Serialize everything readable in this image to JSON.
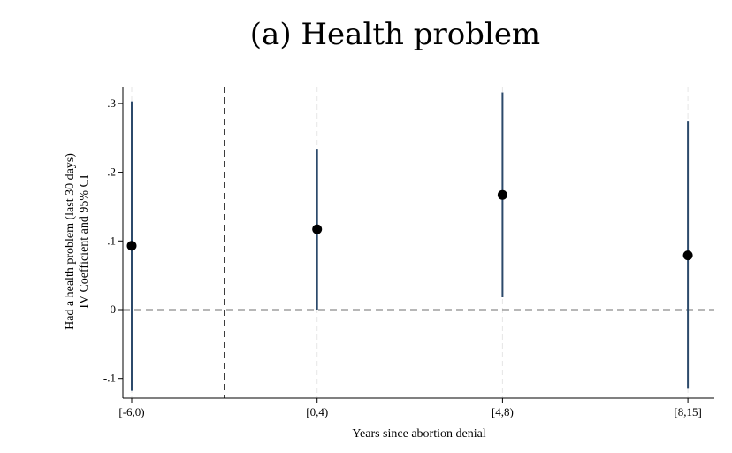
{
  "chart_data": {
    "type": "scatter",
    "title": "(a) Health problem",
    "xlabel": "Years since abortion denial",
    "ylabel_line1": "Had a health problem (last 30 days)",
    "ylabel_line2": "IV Coefficient and 95% CI",
    "categories": [
      "[-6,0)",
      "[0,4)",
      "[4,8)",
      "[8,15]"
    ],
    "y_ticks": [
      -0.1,
      0,
      0.1,
      0.2,
      0.3
    ],
    "y_tick_labels": [
      "-.1",
      "0",
      ".1",
      ".2",
      ".3"
    ],
    "ylim": [
      -0.13,
      0.33
    ],
    "series": [
      {
        "estimates": [
          0.093,
          0.117,
          0.167,
          0.079
        ],
        "ci_low": [
          -0.118,
          0.0,
          0.018,
          -0.115
        ],
        "ci_high": [
          0.303,
          0.234,
          0.316,
          0.274
        ]
      }
    ],
    "reference_line_y": 0,
    "event_line_between": [
      "[-6,0)",
      "[0,4)"
    ],
    "grid": "vertical dashed at categories",
    "colors": {
      "ci_line": "#2c4a6b",
      "marker": "#000000",
      "zero_line": "#8c8c8c",
      "grid": "#e6e6e6",
      "event_line": "#333333"
    }
  }
}
